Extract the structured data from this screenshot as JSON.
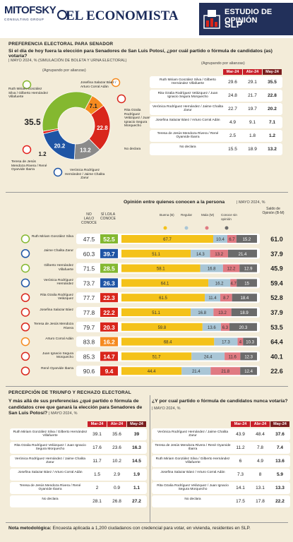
{
  "header": {
    "brand1": "MITOFSKY",
    "brand1_sub": "CONSULTING GROUP",
    "brand2": "EL ECONOMISTA",
    "study_line1": "ESTUDIO DE OPINIÓN",
    "study_line2": "SLP"
  },
  "section1": {
    "title": "PREFERENCIA ELECTORAL PARA SENADOR",
    "question": "Si el día de hoy fuera la elección para Senadores de San Luis Potosí, ¿por cuál partido o fórmula de candidatos (as) votaría?",
    "subtitle": "| MAYO 2024, % (SIMULACIÓN DE BOLETA Y URNA ELECTORAL)",
    "donut_caption": "(Agrupando por alianzas)",
    "table_caption": "(Agrupando por alianzas)"
  },
  "donut_labels": [
    "Josefina Salazar Báez / Arturo Corral Adán",
    "Rita Ozalia Rodríguez Velázquez / Juan Ignacio Segura Morquecho",
    "No declara",
    "Verónica Rodríguez Hernández / Jaime Chalita Zarur",
    "Teresa de Jesús Mendoza Rivera / René Oyarvide Ibarra",
    "Ruth Miriam González Silva / Gilberto Hernández Villafuerte"
  ],
  "chart_data": [
    {
      "type": "pie",
      "title": "",
      "categories": [
        "Ruth Miriam González Silva / Gilberto Hernández Villafuerte",
        "Josefina Salazar Báez / Arturo Corral Adán",
        "Rita Ozalia Rodríguez Velázquez / Juan Ignacio Segura Morquecho",
        "No declara",
        "Verónica Rodríguez Hernández / Jaime Chalita Zarur",
        "Teresa de Jesús Mendoza Rivera / René Oyarvide Ibarra"
      ],
      "values": [
        35.5,
        7.1,
        22.8,
        13.2,
        20.2,
        1.2
      ],
      "colors": [
        "#84b830",
        "#f58a1f",
        "#d9261c",
        "#8a8a8a",
        "#1f55a5",
        "#e3201b"
      ]
    },
    {
      "type": "table",
      "columns": [
        "Mar-24",
        "Abr-24",
        "May-24"
      ],
      "rows": [
        {
          "label": "Ruth Miriam González Silva / Gilberto Hernández Villafuerte",
          "values": [
            "29.6",
            "29.1",
            "35.5"
          ]
        },
        {
          "label": "Rita Ozalia Rodríguez Velázquez / Juan Ignacio Segura Morquecho",
          "values": [
            "24.8",
            "21.7",
            "22.8"
          ]
        },
        {
          "label": "Verónica Rodríguez Hernández / Jaime Chalita Zarur",
          "values": [
            "22.7",
            "19.7",
            "20.2"
          ]
        },
        {
          "label": "Josefina Salazar Báez / Arturo Corral Adán",
          "values": [
            "4.9",
            "9.1",
            "7.1"
          ]
        },
        {
          "label": "Teresa de Jesús Mendoza Rivera / René Oyarvide Ibarra",
          "values": [
            "2.5",
            "1.8",
            "1.2"
          ]
        },
        {
          "label": "No declara",
          "values": [
            "15.5",
            "18.9",
            "13.2"
          ]
        }
      ]
    },
    {
      "type": "bar",
      "title": "Opinión entre quienes conocen a la persona",
      "subtitle": "| MAYO 2024, %",
      "col_no": "NO LA/LO CONOCE",
      "col_si": "SÍ LO/LA CONOCE",
      "legend": [
        "Buena (B)",
        "Regular",
        "Mala (M)",
        "Conoce sin opinión"
      ],
      "col_saldo": "Saldo de Opinión (B-M)",
      "colors": [
        "#f4c21a",
        "#a9c6d6",
        "#e07a82",
        "#6b6b6b"
      ],
      "rows": [
        {
          "name": "Ruth Miriam González Silva",
          "no": "47.5",
          "si": "52.5",
          "si_color": "#84b830",
          "buena": 67.7,
          "regular": 10.4,
          "mala": 6.7,
          "sin": 15.2,
          "saldo": "61.0"
        },
        {
          "name": "Jaime Chalita Zarur",
          "no": "60.3",
          "si": "39.7",
          "si_color": "#1f55a5",
          "buena": 51.1,
          "regular": 14.3,
          "mala": 13.2,
          "sin": 21.4,
          "saldo": "37.9"
        },
        {
          "name": "Gilberto Hernández Villafuerte",
          "no": "71.5",
          "si": "28.5",
          "si_color": "#84b830",
          "buena": 58.1,
          "regular": 16.8,
          "mala": 12.2,
          "sin": 12.9,
          "saldo": "45.9"
        },
        {
          "name": "Verónica Rodríguez Hernández",
          "no": "73.7",
          "si": "26.3",
          "si_color": "#1f55a5",
          "buena": 64.1,
          "regular": 16.2,
          "mala": 4.7,
          "sin": 15.0,
          "saldo": "59.4"
        },
        {
          "name": "Rita Ozalia Rodríguez Velázquez",
          "no": "77.7",
          "si": "22.3",
          "si_color": "#d9261c",
          "buena": 61.5,
          "regular": 11.4,
          "mala": 8.7,
          "sin": 18.4,
          "saldo": "52.8"
        },
        {
          "name": "Josefina Salazar Báez",
          "no": "77.8",
          "si": "22.2",
          "si_color": "#d9261c",
          "buena": 51.1,
          "regular": 16.8,
          "mala": 13.2,
          "sin": 18.9,
          "saldo": "37.9"
        },
        {
          "name": "Teresa de Jesús Mendoza Rivera",
          "no": "79.7",
          "si": "20.3",
          "si_color": "#d9261c",
          "buena": 59.8,
          "regular": 13.6,
          "mala": 6.3,
          "sin": 20.3,
          "saldo": "53.5"
        },
        {
          "name": "Arturo Corral Adán",
          "no": "83.8",
          "si": "16.2",
          "si_color": "#f58a1f",
          "buena": 68.4,
          "regular": 17.3,
          "mala": 4.0,
          "sin": 10.3,
          "saldo": "64.4"
        },
        {
          "name": "Juan Ignacio Segura Morquecho",
          "no": "85.3",
          "si": "14.7",
          "si_color": "#d9261c",
          "buena": 51.7,
          "regular": 24.4,
          "mala": 11.6,
          "sin": 12.3,
          "saldo": "40.1"
        },
        {
          "name": "René Oyarvide Ibarra",
          "no": "90.6",
          "si": "9.4",
          "si_color": "#d9261c",
          "buena": 44.4,
          "regular": 21.4,
          "mala": 21.8,
          "sin": 12.4,
          "saldo": "22.6"
        }
      ]
    },
    {
      "type": "table",
      "title": "Y más allá de sus preferencias ¿qué partido o fórmula de candidatos cree que ganará la elección para Senadores de San Luis Potosí?",
      "subtitle": "| MAYO 2024, %",
      "columns": [
        "Mar-24",
        "Abr-24",
        "May-24"
      ],
      "rows": [
        {
          "label": "Ruth Miriam González Silva / Gilberto Hernández Villafuerte",
          "values": [
            "39.1",
            "35.6",
            "39"
          ]
        },
        {
          "label": "Rita Ozalia Rodríguez Velázquez / Juan Ignacio Segura Morquecho",
          "values": [
            "17.6",
            "23.6",
            "16.3"
          ]
        },
        {
          "label": "Verónica Rodríguez Hernández / Jaime Chalita Zarur",
          "values": [
            "11.7",
            "10.2",
            "14.5"
          ]
        },
        {
          "label": "Josefina Salazar Báez / Arturo Corral Adán",
          "values": [
            "1.5",
            "2.9",
            "1.9"
          ]
        },
        {
          "label": "Teresa de Jesús Mendoza Rivera / René Oyarvide Ibarra",
          "values": [
            "2",
            "0.9",
            "1.1"
          ]
        },
        {
          "label": "No declara",
          "values": [
            "28.1",
            "26.8",
            "27.2"
          ]
        }
      ]
    },
    {
      "type": "table",
      "title": "¿Y por cual partido o fórmula de candidatos nunca votaría?",
      "subtitle": "| MAYO 2024, %",
      "columns": [
        "Mar-24",
        "Abr-24",
        "May-24"
      ],
      "rows": [
        {
          "label": "Verónica Rodríguez Hernández / Jaime Chalita Zarur",
          "values": [
            "43.9",
            "48.4",
            "37.6"
          ]
        },
        {
          "label": "Teresa de Jesús Mendoza Rivera / René Oyarvide Ibarra",
          "values": [
            "11.2",
            "7.8",
            "7.4"
          ]
        },
        {
          "label": "Ruth Miriam González Silva / Gilberto Hernández Villafuerte",
          "values": [
            "6",
            "4.9",
            "13.6"
          ]
        },
        {
          "label": "Josefina Salazar Báez / Arturo Corral Adán",
          "values": [
            "7.3",
            "8",
            "5.9"
          ]
        },
        {
          "label": "Rita Ozalia Rodríguez Velázquez / Juan Ignacio Segura Morquecho",
          "values": [
            "14.1",
            "13.1",
            "13.3"
          ]
        },
        {
          "label": "No declara",
          "values": [
            "17.5",
            "17.8",
            "22.2"
          ]
        }
      ]
    }
  ],
  "section3": {
    "title": "PERCEPCIÓN DE TRIUNFO Y RECHAZO ELECTORAL"
  },
  "note": {
    "label": "Nota metodológica:",
    "text": "Encuesta aplicada a 1,200 ciudadanos con credencial para votar, en vivienda, residentes en SLP."
  },
  "colors": {
    "header_red": "#c8202a",
    "navy": "#22305a",
    "morena": "#7a1e1e",
    "bg": "#f3ecd9"
  },
  "party_icons": [
    "party-logo-verde",
    "party-logo-pan",
    "party-logo-pri",
    "party-logo-prd",
    "party-logo-morena",
    "party-logo-pt",
    "party-logo-mc"
  ]
}
